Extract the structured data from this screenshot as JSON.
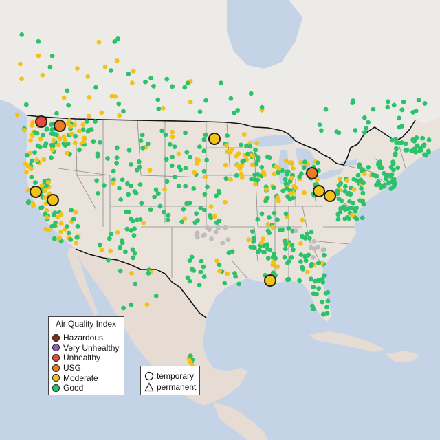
{
  "colors": {
    "water": "#c4d4e6",
    "land": "#ecebe7",
    "land_warm": "#e7dcd4",
    "state_border": "#8a8a8a",
    "country_border": "#111111",
    "marker_outline": "#222222"
  },
  "legend": {
    "title": "Air Quality Index",
    "categories": [
      {
        "key": "hazardous",
        "label": "Hazardous",
        "color": "#7e2d1e"
      },
      {
        "key": "very_unhealthy",
        "label": "Very Unhealthy",
        "color": "#8f5fb3"
      },
      {
        "key": "unhealthy",
        "label": "Unhealthy",
        "color": "#e9483a"
      },
      {
        "key": "usg",
        "label": "USG",
        "color": "#ea7d23"
      },
      {
        "key": "moderate",
        "label": "Moderate",
        "color": "#f2c21b"
      },
      {
        "key": "good",
        "label": "Good",
        "color": "#2cc26c"
      }
    ]
  },
  "monitor_type_legend": {
    "temporary_label": "temporary",
    "permanent_label": "permanent",
    "temporary_icon": "circle-icon",
    "permanent_icon": "triangle-icon"
  },
  "no_data_color": "#bdbdbd"
}
